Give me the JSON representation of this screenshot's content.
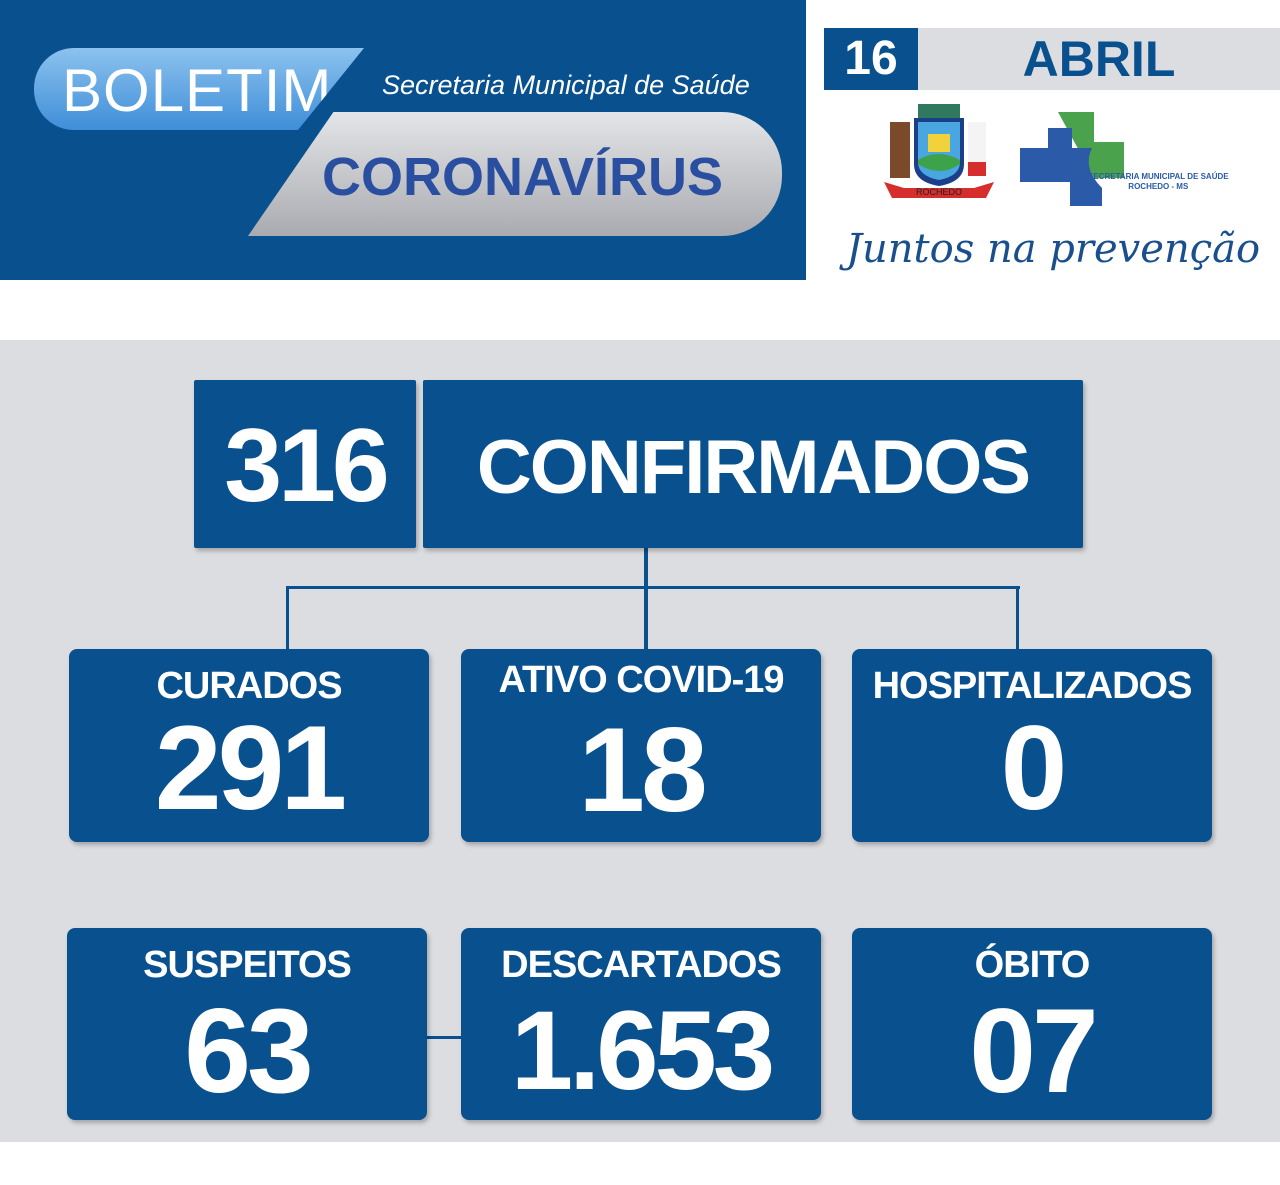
{
  "header": {
    "boletim": "BOLETIM",
    "subtitle": "Secretaria Municipal de Saúde",
    "title": "CORONAVÍRUS"
  },
  "date": {
    "day": "16",
    "month": "ABRIL"
  },
  "logos": {
    "crest_text": "ROCHEDO",
    "secretaria_line1": "SECRETARIA MUNICIPAL DE SAÚDE",
    "secretaria_line2": "ROCHEDO - MS",
    "slogan": "Juntos na prevenção"
  },
  "colors": {
    "brand_blue": "#08508e",
    "panel_gray": "#dcdde0"
  },
  "stats": {
    "confirmed": {
      "value": "316",
      "label": "CONFIRMADOS"
    },
    "cured": {
      "label": "CURADOS",
      "value": "291"
    },
    "active": {
      "label": "ATIVO COVID-19",
      "value": "18"
    },
    "hospitalized": {
      "label": "HOSPITALIZADOS",
      "value": "0"
    },
    "suspected": {
      "label": "SUSPEITOS",
      "value": "63"
    },
    "discarded": {
      "label": "DESCARTADOS",
      "value": "1.653"
    },
    "deaths": {
      "label": "ÓBITO",
      "value": "07"
    }
  }
}
